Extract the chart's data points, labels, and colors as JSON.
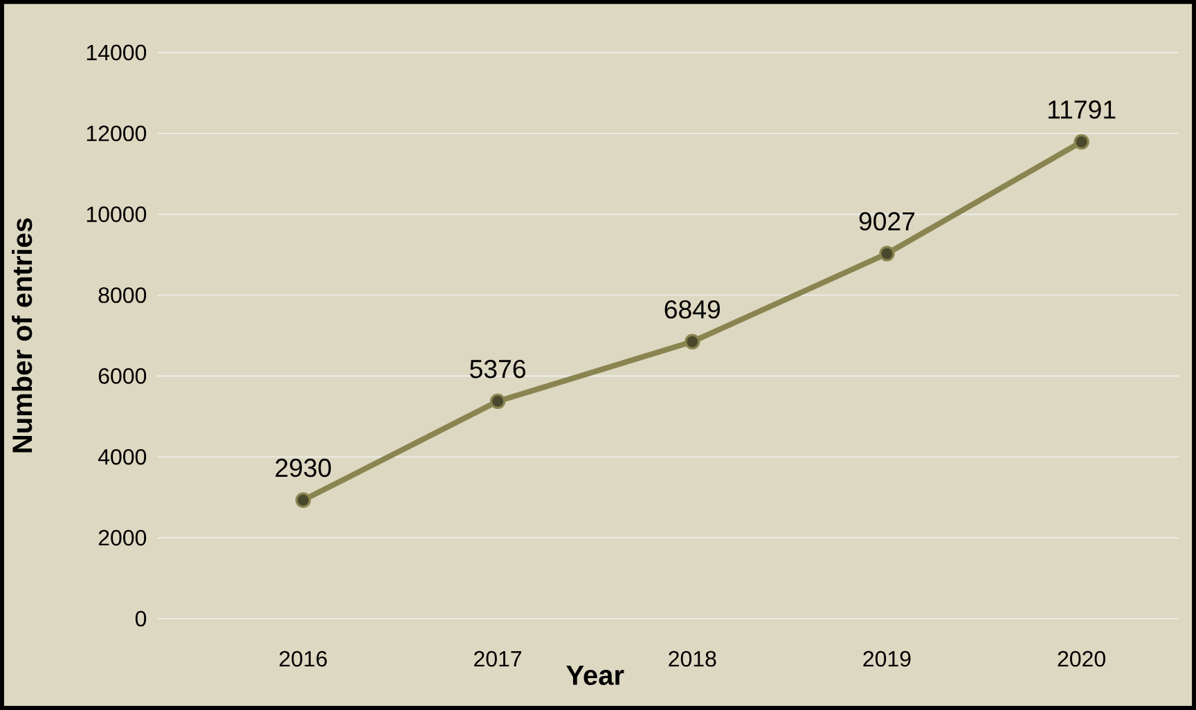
{
  "chart_data": {
    "type": "line",
    "xlabel": "Year",
    "ylabel": "Number of entries",
    "categories": [
      "2016",
      "2017",
      "2018",
      "2019",
      "2020"
    ],
    "values": [
      2930,
      5376,
      6849,
      9027,
      11791
    ],
    "color": "#8a8450",
    "ylim": [
      0,
      14000
    ],
    "yticks": [
      0,
      2000,
      4000,
      6000,
      8000,
      10000,
      12000,
      14000
    ],
    "grid": "y",
    "marker": "circle",
    "line_style": "solid",
    "data_labels": true
  }
}
